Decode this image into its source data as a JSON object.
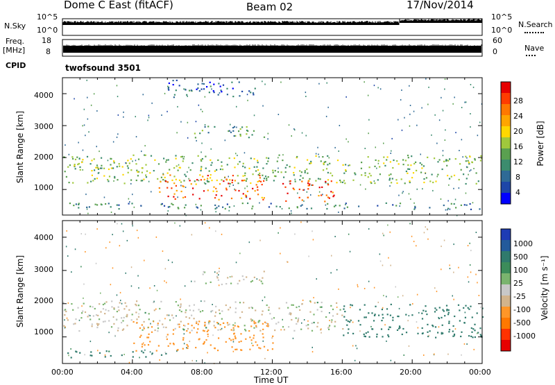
{
  "header": {
    "station": "Dome C East (fitACF)",
    "beam": "Beam 02",
    "date": "17/Nov/2014"
  },
  "strip": {
    "nsky_label": "N.Sky",
    "nsky_ticks": [
      "10^5",
      "10^0"
    ],
    "nsearch_label": "N.Search",
    "nsearch_ticks": [
      "10^5",
      "10^0"
    ],
    "freq_label": "Freq.",
    "freq_unit": "[MHz]",
    "freq_ticks": [
      "18",
      "8"
    ],
    "nave_label": "Nave",
    "nave_ticks": [
      "60",
      "0"
    ],
    "cpid_label": "CPID",
    "cpid_value": "twofsound 3501"
  },
  "x_axis": {
    "label": "Time UT",
    "ticks": [
      "00:00",
      "04:00",
      "08:00",
      "12:00",
      "16:00",
      "20:00",
      "00:00"
    ]
  },
  "panels": {
    "power": {
      "ylabel": "Slant Range [km]",
      "yticks": [
        "1000",
        "2000",
        "3000",
        "4000"
      ],
      "cbar_label": "Power [dB]",
      "cbar_ticks": [
        "28",
        "24",
        "20",
        "16",
        "12",
        "8",
        "4"
      ]
    },
    "velocity": {
      "ylabel": "Slant Range [km]",
      "yticks": [
        "1000",
        "2000",
        "3000",
        "4000"
      ],
      "cbar_label": "Velocity [m s⁻¹]",
      "cbar_ticks": [
        "1000",
        "500",
        "100",
        "25",
        "-25",
        "-100",
        "-500",
        "-1000"
      ]
    }
  },
  "colors": {
    "power_scale": [
      "#0000ff",
      "#1e46a8",
      "#2f6a96",
      "#3c8c6e",
      "#5aa050",
      "#a0c83c",
      "#ffd700",
      "#ffa500",
      "#ff7800",
      "#ff3c00",
      "#e60000"
    ],
    "velocity_scale": [
      "#1e3cb4",
      "#235a9b",
      "#2f7a6c",
      "#3c8c5a",
      "#7ab46e",
      "#c8c8c8",
      "#d2b48c",
      "#ff9628",
      "#ff7800",
      "#ff3200",
      "#e60000"
    ]
  },
  "chart_data": [
    {
      "type": "heatmap",
      "title": "Power",
      "xlabel": "Time UT",
      "ylabel": "Slant Range [km]",
      "x_range_hours": [
        0,
        24
      ],
      "ylim_km": [
        200,
        4500
      ],
      "colorbar": {
        "label": "Power [dB]",
        "range": [
          0,
          32
        ],
        "ticks": [
          4,
          8,
          12,
          16,
          20,
          24,
          28
        ]
      },
      "features": [
        {
          "name": "main-band",
          "t_start": 0,
          "t_end": 24,
          "range_km": [
            1200,
            2100
          ],
          "power_db": 14
        },
        {
          "name": "strong-echo",
          "t_start": 5.5,
          "t_end": 11.5,
          "range_km": [
            700,
            1500
          ],
          "power_db": 26
        },
        {
          "name": "strong-echo",
          "t_start": 12.5,
          "t_end": 15.5,
          "range_km": [
            600,
            1300
          ],
          "power_db": 28
        },
        {
          "name": "near-range-band",
          "t_start": 0,
          "t_end": 24,
          "range_km": [
            400,
            600
          ],
          "power_db": 8
        },
        {
          "name": "upper-arc",
          "t_start": 7.5,
          "t_end": 11.5,
          "range_km": [
            2600,
            3000
          ],
          "power_db": 10
        },
        {
          "name": "high-range-patch",
          "t_start": 6,
          "t_end": 11,
          "range_km": [
            3900,
            4450
          ],
          "power_db": 6
        }
      ]
    },
    {
      "type": "heatmap",
      "title": "Velocity",
      "xlabel": "Time UT",
      "ylabel": "Slant Range [km]",
      "x_range_hours": [
        0,
        24
      ],
      "ylim_km": [
        200,
        4500
      ],
      "colorbar": {
        "label": "Velocity [m s⁻¹]",
        "ticks": [
          1000,
          500,
          100,
          25,
          -25,
          -100,
          -500,
          -1000
        ]
      },
      "features": [
        {
          "name": "main-band",
          "t_start": 0,
          "t_end": 16,
          "range_km": [
            1200,
            2100
          ],
          "velocity": 0
        },
        {
          "name": "negative-flow",
          "t_start": 4,
          "t_end": 12,
          "range_km": [
            600,
            1500
          ],
          "velocity": -120
        },
        {
          "name": "positive-flow",
          "t_start": 16,
          "t_end": 24,
          "range_km": [
            1000,
            2000
          ],
          "velocity": 150
        },
        {
          "name": "near-range-band",
          "t_start": 0,
          "t_end": 6,
          "range_km": [
            400,
            600
          ],
          "velocity": 120
        },
        {
          "name": "upper-arc",
          "t_start": 7.5,
          "t_end": 11.5,
          "range_km": [
            2600,
            3000
          ],
          "velocity": 0
        }
      ]
    }
  ]
}
